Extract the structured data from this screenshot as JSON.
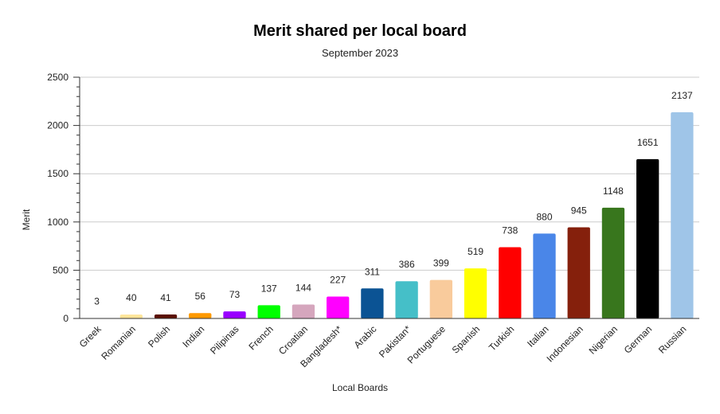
{
  "chart_data": {
    "type": "bar",
    "title": "Merit shared per local board",
    "subtitle": "September 2023",
    "xlabel": "Local Boards",
    "ylabel": "Merit",
    "ylim": [
      0,
      2500
    ],
    "yticks": [
      0,
      500,
      1000,
      1500,
      2000,
      2500
    ],
    "grid": true,
    "legend": "none",
    "categories": [
      "Greek",
      "Romanian",
      "Polish",
      "Indian",
      "Pilipinas",
      "French",
      "Croatian",
      "Bangladesh*",
      "Arabic",
      "Pakistan*",
      "Portuguese",
      "Spanish",
      "Turkish",
      "Italian",
      "Indonesian",
      "Nigerian",
      "German",
      "Russian"
    ],
    "values": [
      3,
      40,
      41,
      56,
      73,
      137,
      144,
      227,
      311,
      386,
      399,
      519,
      738,
      880,
      945,
      1148,
      1651,
      2137
    ],
    "colors": [
      "#b7b7b7",
      "#ffe599",
      "#5b0f00",
      "#ff9900",
      "#9900ff",
      "#00ff00",
      "#d5a6bd",
      "#ff00ff",
      "#0b5394",
      "#45bfc8",
      "#f9cb9c",
      "#ffff00",
      "#ff0000",
      "#4a86e8",
      "#85200c",
      "#38761d",
      "#000000",
      "#9fc5e8"
    ]
  }
}
